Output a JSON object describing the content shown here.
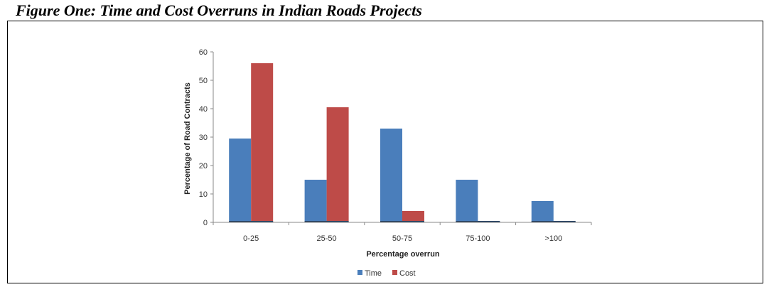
{
  "figure": {
    "title": "Figure One: Time and Cost Overruns in Indian Roads Projects"
  },
  "chart_data": {
    "type": "bar",
    "categories": [
      "0-25",
      "25-50",
      "50-75",
      "75-100",
      ">100"
    ],
    "series": [
      {
        "name": "Time",
        "values": [
          29.5,
          15,
          33,
          15,
          7.5
        ],
        "color": "#4a7ebb"
      },
      {
        "name": "Cost",
        "values": [
          56,
          40.5,
          4,
          0,
          0
        ],
        "color": "#be4b48"
      }
    ],
    "xlabel": "Percentage overrun",
    "ylabel": "Percentage of Road Contracts",
    "ylim": [
      0,
      60
    ],
    "yticks": [
      0,
      10,
      20,
      30,
      40,
      50,
      60
    ],
    "grid": false,
    "legend": "bottom"
  }
}
